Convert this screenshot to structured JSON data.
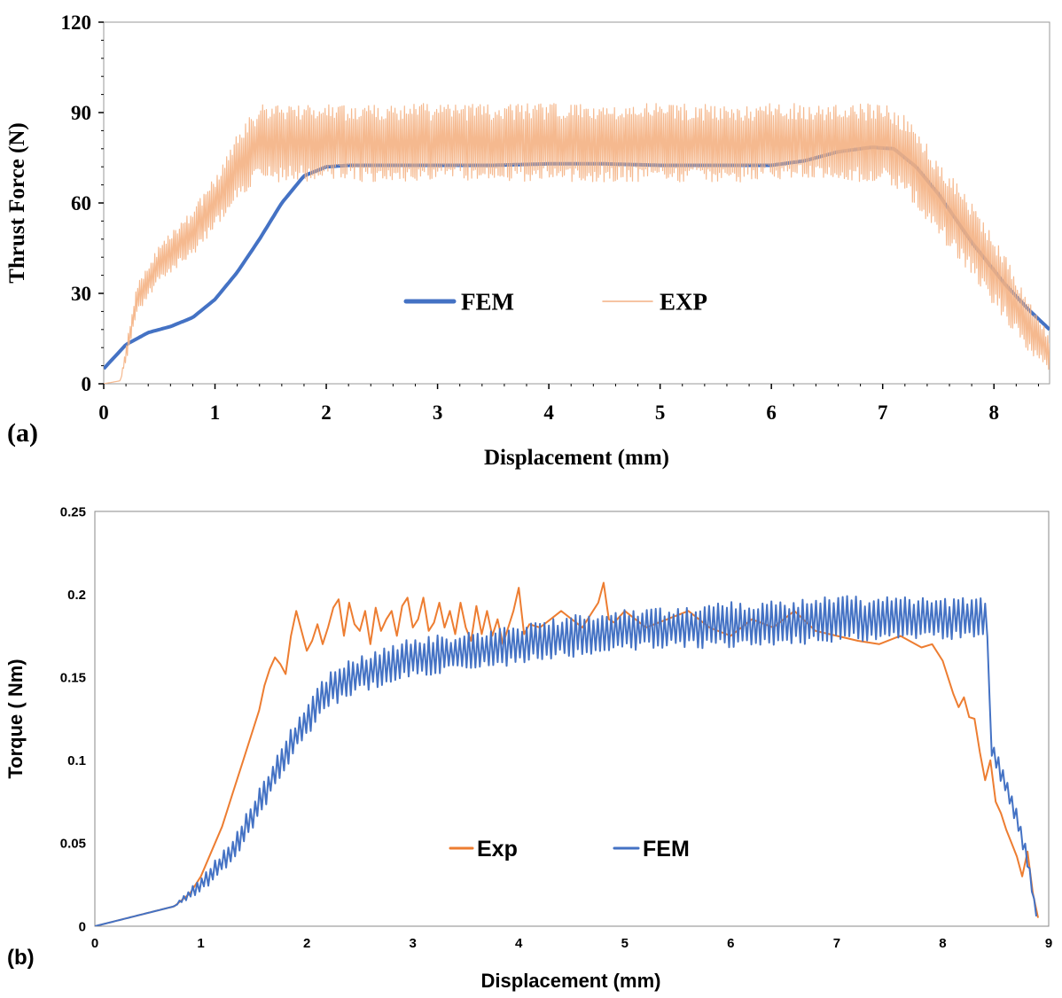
{
  "chart_data": [
    {
      "panel_label": "(a)",
      "type": "line",
      "xlabel": "Displacement (mm)",
      "ylabel": "Thrust Force (N)",
      "xlim": [
        0,
        8.5
      ],
      "ylim": [
        0,
        120
      ],
      "x_ticks": [
        "0",
        "1",
        "2",
        "3",
        "4",
        "5",
        "6",
        "7",
        "8"
      ],
      "y_ticks": [
        "0",
        "30",
        "60",
        "90",
        "120"
      ],
      "legend": [
        {
          "name": "FEM",
          "color": "#4472C4"
        },
        {
          "name": "EXP",
          "color": "#F4B183"
        }
      ],
      "series": [
        {
          "name": "FEM",
          "color": "#4472C4",
          "x": [
            0,
            0.2,
            0.4,
            0.6,
            0.8,
            1.0,
            1.2,
            1.4,
            1.6,
            1.8,
            2.0,
            2.2,
            2.5,
            3.0,
            3.5,
            4.0,
            4.5,
            5.0,
            5.5,
            6.0,
            6.3,
            6.6,
            6.9,
            7.1,
            7.3,
            7.5,
            7.8,
            8.1,
            8.3,
            8.5
          ],
          "values": [
            5,
            13,
            17,
            19,
            22,
            28,
            37,
            48,
            60,
            69,
            72,
            72.5,
            72.5,
            72.5,
            72.5,
            73,
            73,
            72.5,
            72.5,
            72.5,
            74,
            77,
            78.5,
            78,
            72,
            63,
            47,
            33,
            25,
            18
          ]
        },
        {
          "name": "EXP",
          "color": "#F4B183",
          "x": [
            0,
            0.15,
            0.2,
            0.3,
            0.5,
            0.8,
            1.0,
            1.2,
            1.4,
            2.0,
            3.0,
            4.0,
            5.0,
            6.0,
            6.5,
            7.0,
            7.2,
            7.5,
            7.8,
            8.1,
            8.3,
            8.5
          ],
          "center": [
            0,
            1,
            10,
            28,
            40,
            50,
            60,
            72,
            80,
            80,
            80,
            80,
            80,
            80,
            80,
            80,
            76,
            62,
            48,
            32,
            20,
            10
          ],
          "amplitude": [
            0,
            0,
            3,
            5,
            6,
            8,
            9,
            11,
            13,
            13,
            13,
            13,
            13,
            13,
            13,
            13,
            13,
            13,
            12,
            11,
            9,
            6
          ]
        }
      ]
    },
    {
      "panel_label": "(b)",
      "type": "line",
      "xlabel": "Displacement (mm)",
      "ylabel": "Torque ( Nm)",
      "xlim": [
        0,
        9
      ],
      "ylim": [
        0,
        0.25
      ],
      "x_ticks": [
        "0",
        "1",
        "2",
        "3",
        "4",
        "5",
        "6",
        "7",
        "8",
        "9"
      ],
      "y_ticks": [
        "0",
        "0.05",
        "0.1",
        "0.15",
        "0.2",
        "0.25"
      ],
      "legend": [
        {
          "name": "Exp",
          "color": "#ED7D31"
        },
        {
          "name": "FEM",
          "color": "#4472C4"
        }
      ],
      "series": [
        {
          "name": "Exp",
          "color": "#ED7D31",
          "x": [
            0,
            0.75,
            0.9,
            1.0,
            1.1,
            1.2,
            1.3,
            1.4,
            1.5,
            1.55,
            1.6,
            1.65,
            1.7,
            1.75,
            1.8,
            1.85,
            1.9,
            1.95,
            2.0,
            2.05,
            2.1,
            2.15,
            2.2,
            2.25,
            2.3,
            2.35,
            2.4,
            2.45,
            2.5,
            2.55,
            2.6,
            2.65,
            2.7,
            2.75,
            2.8,
            2.85,
            2.9,
            2.95,
            3.0,
            3.05,
            3.1,
            3.15,
            3.2,
            3.25,
            3.3,
            3.35,
            3.4,
            3.45,
            3.5,
            3.55,
            3.6,
            3.65,
            3.7,
            3.75,
            3.8,
            3.85,
            3.9,
            3.95,
            4.0,
            4.05,
            4.1,
            4.2,
            4.3,
            4.4,
            4.5,
            4.6,
            4.7,
            4.75,
            4.8,
            4.85,
            4.9,
            5.0,
            5.2,
            5.4,
            5.6,
            5.8,
            6.0,
            6.2,
            6.4,
            6.6,
            6.8,
            7.0,
            7.2,
            7.4,
            7.6,
            7.8,
            7.9,
            8.0,
            8.05,
            8.1,
            8.15,
            8.2,
            8.25,
            8.3,
            8.35,
            8.4,
            8.45,
            8.5,
            8.55,
            8.6,
            8.65,
            8.7,
            8.75,
            8.8,
            8.85,
            8.9
          ],
          "values": [
            0,
            0.012,
            0.02,
            0.03,
            0.045,
            0.06,
            0.08,
            0.1,
            0.12,
            0.13,
            0.145,
            0.155,
            0.162,
            0.158,
            0.152,
            0.175,
            0.19,
            0.178,
            0.166,
            0.172,
            0.182,
            0.17,
            0.18,
            0.192,
            0.197,
            0.175,
            0.195,
            0.182,
            0.178,
            0.19,
            0.17,
            0.192,
            0.178,
            0.185,
            0.19,
            0.175,
            0.193,
            0.198,
            0.18,
            0.185,
            0.198,
            0.178,
            0.183,
            0.195,
            0.18,
            0.19,
            0.176,
            0.195,
            0.18,
            0.172,
            0.193,
            0.176,
            0.19,
            0.175,
            0.185,
            0.17,
            0.18,
            0.19,
            0.204,
            0.176,
            0.182,
            0.18,
            0.185,
            0.19,
            0.185,
            0.18,
            0.19,
            0.195,
            0.207,
            0.185,
            0.183,
            0.19,
            0.18,
            0.185,
            0.19,
            0.18,
            0.175,
            0.185,
            0.18,
            0.19,
            0.178,
            0.175,
            0.172,
            0.17,
            0.175,
            0.168,
            0.17,
            0.16,
            0.15,
            0.14,
            0.132,
            0.138,
            0.126,
            0.125,
            0.105,
            0.088,
            0.1,
            0.075,
            0.068,
            0.058,
            0.05,
            0.042,
            0.03,
            0.045,
            0.02,
            0.005
          ]
        },
        {
          "name": "FEM",
          "color": "#4472C4",
          "x": [
            0,
            0.75,
            1.0,
            1.3,
            1.6,
            1.9,
            2.2,
            2.5,
            3.0,
            3.5,
            4.0,
            4.5,
            5.0,
            5.5,
            6.0,
            6.5,
            7.0,
            7.5,
            8.0,
            8.42,
            8.45,
            8.5,
            8.6,
            8.7,
            8.8,
            8.85,
            8.9
          ],
          "center": [
            0,
            0.012,
            0.025,
            0.045,
            0.08,
            0.115,
            0.142,
            0.152,
            0.162,
            0.165,
            0.17,
            0.175,
            0.178,
            0.18,
            0.182,
            0.183,
            0.185,
            0.185,
            0.185,
            0.186,
            0.11,
            0.1,
            0.085,
            0.065,
            0.04,
            0.02,
            0.0
          ],
          "amplitude": [
            0,
            0,
            0.005,
            0.007,
            0.009,
            0.01,
            0.011,
            0.012,
            0.012,
            0.012,
            0.012,
            0.013,
            0.013,
            0.013,
            0.014,
            0.014,
            0.014,
            0.014,
            0.013,
            0.012,
            0.006,
            0.006,
            0.006,
            0.006,
            0.005,
            0.003,
            0
          ]
        }
      ]
    }
  ]
}
